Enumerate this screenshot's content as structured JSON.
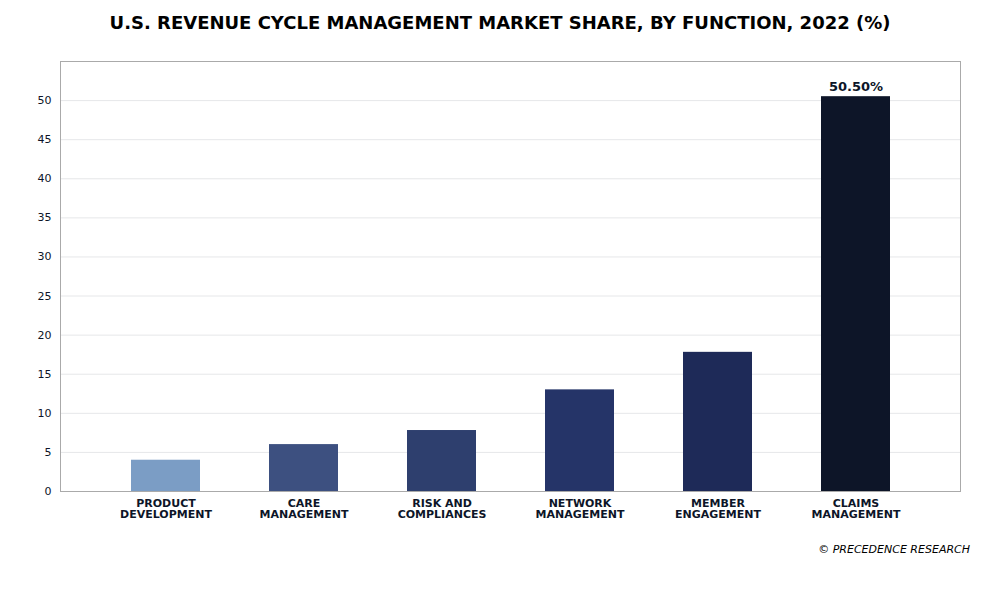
{
  "chart_data": {
    "type": "bar",
    "title": "U.S. REVENUE CYCLE MANAGEMENT MARKET SHARE, BY FUNCTION, 2022 (%)",
    "categories": [
      "PRODUCT\nDEVELOPMENT",
      "CARE\nMANAGEMENT",
      "RISK AND\nCOMPLIANCES",
      "NETWORK\nMANAGEMENT",
      "MEMBER\nENGAGEMENT",
      "CLAIMS\nMANAGEMENT"
    ],
    "values": [
      4.0,
      6.0,
      7.8,
      13.0,
      17.8,
      50.5
    ],
    "colors": [
      "#7b9dc5",
      "#3d5080",
      "#2e3f6e",
      "#253468",
      "#1e2a58",
      "#0d1528"
    ],
    "annotations": [
      {
        "text": "50.50%",
        "x": "CLAIMS\nMANAGEMENT",
        "y": 50.5
      }
    ],
    "caption": "© PRECEDENCE RESEARCH",
    "ylim": [
      0,
      55
    ],
    "yticks": [
      0,
      5,
      10,
      15,
      20,
      25,
      30,
      35,
      40,
      45,
      50
    ],
    "grid": true
  }
}
